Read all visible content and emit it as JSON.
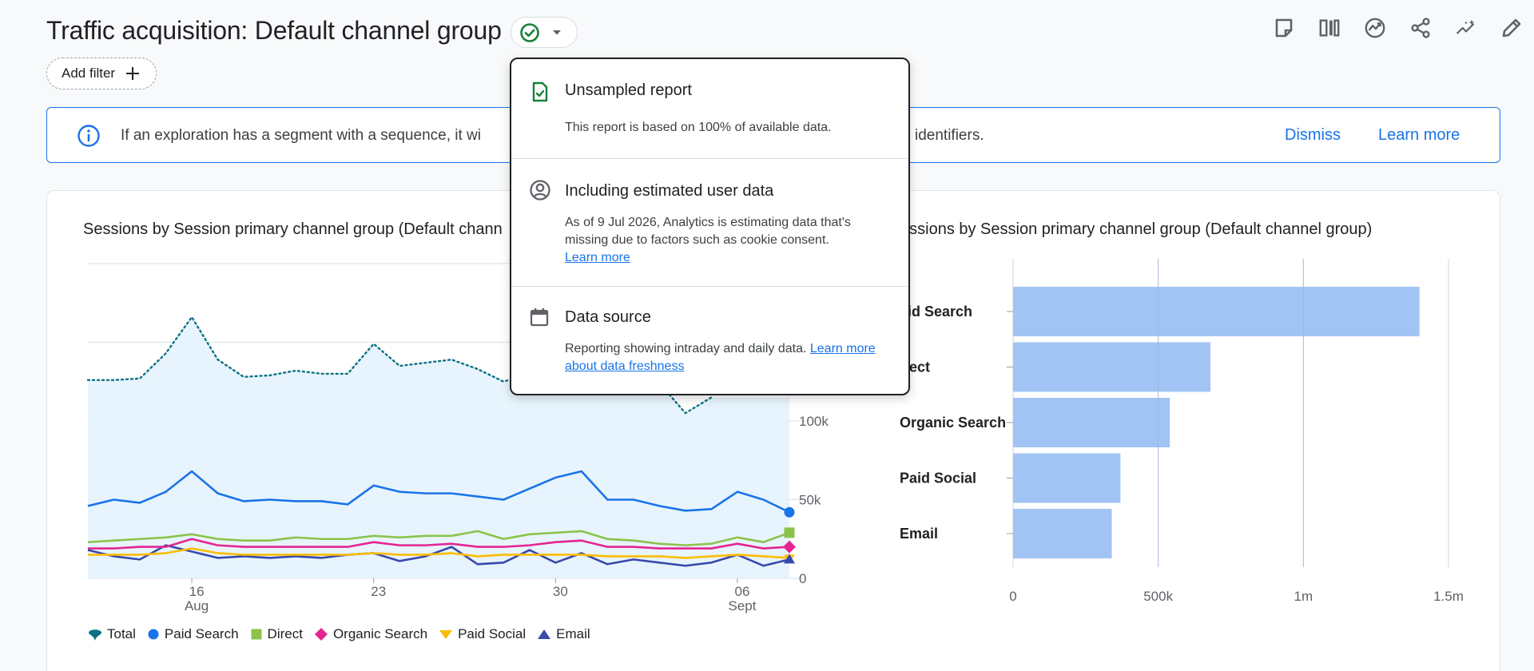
{
  "header": {
    "title": "Traffic acquisition: Default channel group",
    "status_icon": "check-circle-icon",
    "toolbar_icons": [
      "note-icon",
      "compare-icon",
      "insights-icon",
      "share-icon",
      "sparkle-icon",
      "edit-icon"
    ]
  },
  "filter": {
    "add_label": "Add filter"
  },
  "banner": {
    "text_left": "If an exploration has a segment with a sequence, it wi",
    "text_right": "identifiers.",
    "dismiss": "Dismiss",
    "learn_more": "Learn more"
  },
  "popover": {
    "unsampled_title": "Unsampled report",
    "unsampled_body": "This report is based on 100% of available data.",
    "estimated_title": "Including estimated user data",
    "estimated_body": "As of 9 Jul 2026, Analytics is estimating data that's missing due to factors such as cookie consent.",
    "estimated_link": "Learn more",
    "source_title": "Data source",
    "source_body": "Reporting showing intraday and daily data.",
    "source_link": "Learn more about data freshness"
  },
  "colors": {
    "total": "#1a73e8",
    "paid_search": "#1a73e8",
    "direct": "#8bc34a",
    "organic_search": "#e52592",
    "paid_social": "#fbbc04",
    "email": "#3949ab",
    "bar": "#a1c4f4"
  },
  "chart_data": [
    {
      "type": "line",
      "title": "Sessions by Session primary channel group (Default chann",
      "x": [
        "Aug 12",
        "Aug 13",
        "Aug 14",
        "Aug 15",
        "Aug 16",
        "Aug 17",
        "Aug 18",
        "Aug 19",
        "Aug 20",
        "Aug 21",
        "Aug 22",
        "Aug 23",
        "Aug 24",
        "Aug 25",
        "Aug 26",
        "Aug 27",
        "Aug 28",
        "Aug 29",
        "Aug 30",
        "Aug 31",
        "Sep 1",
        "Sep 2",
        "Sep 3",
        "Sep 4",
        "Sep 5",
        "Sep 6",
        "Sep 7",
        "Sep 8"
      ],
      "x_ticks": [
        {
          "label": "16",
          "sub": "Aug",
          "index": 4
        },
        {
          "label": "23",
          "sub": "",
          "index": 11
        },
        {
          "label": "30",
          "sub": "",
          "index": 18
        },
        {
          "label": "06",
          "sub": "Sept",
          "index": 25
        }
      ],
      "y_ticks": [
        "0",
        "50k",
        "100k"
      ],
      "ylim": [
        0,
        200000
      ],
      "series": [
        {
          "name": "Total",
          "style": "dotted-area",
          "values": [
            126000,
            126000,
            127000,
            143000,
            166000,
            139000,
            128000,
            129000,
            132000,
            130000,
            130000,
            149000,
            135000,
            137000,
            139000,
            133000,
            125000,
            130000,
            136000,
            141000,
            137000,
            132000,
            124000,
            105000,
            115000,
            null,
            null,
            null
          ]
        },
        {
          "name": "Paid Search",
          "values": [
            46000,
            50000,
            48000,
            55000,
            68000,
            54000,
            49000,
            50000,
            49000,
            49000,
            47000,
            59000,
            55000,
            54000,
            54000,
            52000,
            50000,
            57000,
            64000,
            68000,
            50000,
            50000,
            46000,
            43000,
            44000,
            55000,
            50000,
            42000
          ]
        },
        {
          "name": "Direct",
          "values": [
            23000,
            24000,
            25000,
            26000,
            28000,
            25000,
            24000,
            24000,
            26000,
            25000,
            25000,
            27000,
            26000,
            27000,
            27000,
            30000,
            25000,
            28000,
            29000,
            30000,
            25000,
            24000,
            22000,
            21000,
            22000,
            26000,
            23000,
            29000
          ]
        },
        {
          "name": "Organic Search",
          "values": [
            19000,
            19000,
            20000,
            20000,
            25000,
            21000,
            20000,
            20000,
            20000,
            20000,
            20000,
            23000,
            21000,
            21000,
            22000,
            20000,
            20000,
            21000,
            23000,
            24000,
            20000,
            20000,
            19000,
            19000,
            19000,
            22000,
            19000,
            20000
          ]
        },
        {
          "name": "Paid Social",
          "values": [
            15000,
            15000,
            15000,
            16000,
            19000,
            16000,
            15000,
            15000,
            15000,
            15000,
            15000,
            16000,
            15000,
            15000,
            16000,
            14000,
            15000,
            15000,
            15000,
            15000,
            14000,
            14000,
            14000,
            13000,
            14000,
            15000,
            14000,
            13000
          ]
        },
        {
          "name": "Email",
          "values": [
            18000,
            14000,
            12000,
            21000,
            17000,
            13000,
            14000,
            13000,
            14000,
            13000,
            15000,
            16000,
            11000,
            14000,
            20000,
            9000,
            10000,
            18000,
            10000,
            16000,
            9000,
            12000,
            10000,
            8000,
            10000,
            15000,
            8000,
            12000
          ]
        }
      ]
    },
    {
      "type": "bar",
      "title": "essions by Session primary channel group (Default channel group)",
      "categories": [
        "aid Search",
        "irect",
        "Organic Search",
        "Paid Social",
        "Email"
      ],
      "values": [
        1400000,
        680000,
        540000,
        370000,
        340000
      ],
      "xlim": [
        0,
        1500000
      ],
      "x_ticks": [
        "0",
        "500k",
        "1m",
        "1.5m"
      ]
    }
  ]
}
